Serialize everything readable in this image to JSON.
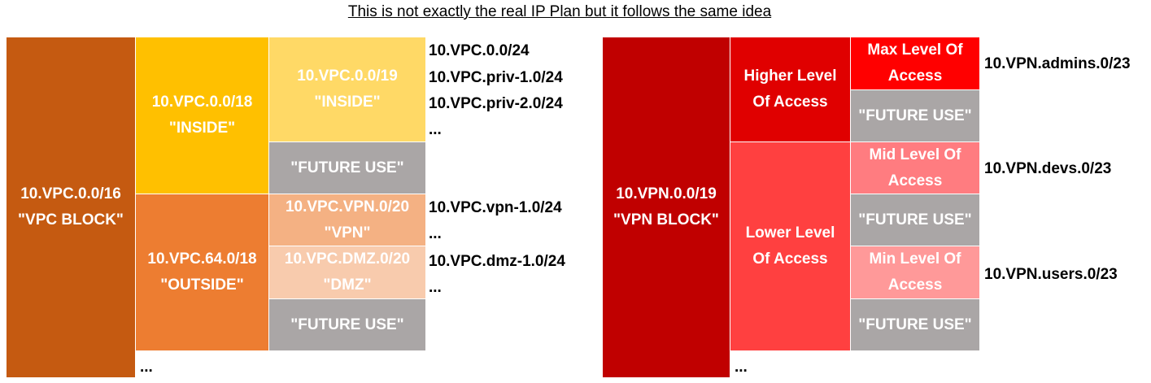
{
  "title": "This is not exactly the real IP Plan but it follows the same idea",
  "colors": {
    "vpc_block": "#c55a11",
    "inside": "#ffc000",
    "inside_19": "#ffd966",
    "outside": "#ed7d31",
    "vpn_20": "#f4b183",
    "dmz_20": "#f8cbad",
    "future": "#aaa6a6",
    "vpn_block": "#c00000",
    "higher": "#e00000",
    "max": "#ff0000",
    "lower": "#ff4040",
    "mid": "#ff7c80",
    "min": "#ff9999"
  },
  "vpc": {
    "block": {
      "line1": "10.VPC.0.0/16",
      "line2": "\"VPC BLOCK\""
    },
    "inside": {
      "line1": "10.VPC.0.0/18",
      "line2": "\"INSIDE\""
    },
    "inside_19": {
      "line1": "10.VPC.0.0/19",
      "line2": "\"INSIDE\""
    },
    "inside_future": "\"FUTURE USE\"",
    "outside": {
      "line1": "10.VPC.64.0/18",
      "line2": "\"OUTSIDE\""
    },
    "vpn_20": {
      "line1": "10.VPC.VPN.0/20",
      "line2": "\"VPN\""
    },
    "dmz_20": {
      "line1": "10.VPC.DMZ.0/20",
      "line2": "\"DMZ\""
    },
    "outside_future": "\"FUTURE USE\"",
    "subnets_inside": [
      "10.VPC.0.0/24",
      "10.VPC.priv-1.0/24",
      "10.VPC.priv-2.0/24",
      "..."
    ],
    "subnets_vpn": [
      "10.VPC.vpn-1.0/24",
      "..."
    ],
    "subnets_dmz": [
      "10.VPC.dmz-1.0/24",
      "..."
    ],
    "more": "..."
  },
  "vpn": {
    "block": {
      "line1": "10.VPN.0.0/19",
      "line2": "\"VPN BLOCK\""
    },
    "higher": {
      "line1": "Higher Level",
      "line2": "Of Access"
    },
    "max": {
      "line1": "Max Level Of",
      "line2": "Access"
    },
    "higher_future": "\"FUTURE USE\"",
    "lower": {
      "line1": "Lower Level",
      "line2": "Of Access"
    },
    "mid": {
      "line1": "Mid Level Of",
      "line2": "Access"
    },
    "mid_future": "\"FUTURE USE\"",
    "min": {
      "line1": "Min Level Of",
      "line2": "Access"
    },
    "min_future": "\"FUTURE USE\"",
    "subnet_admins": "10.VPN.admins.0/23",
    "subnet_devs": "10.VPN.devs.0/23",
    "subnet_users": "10.VPN.users.0/23",
    "more": "..."
  }
}
